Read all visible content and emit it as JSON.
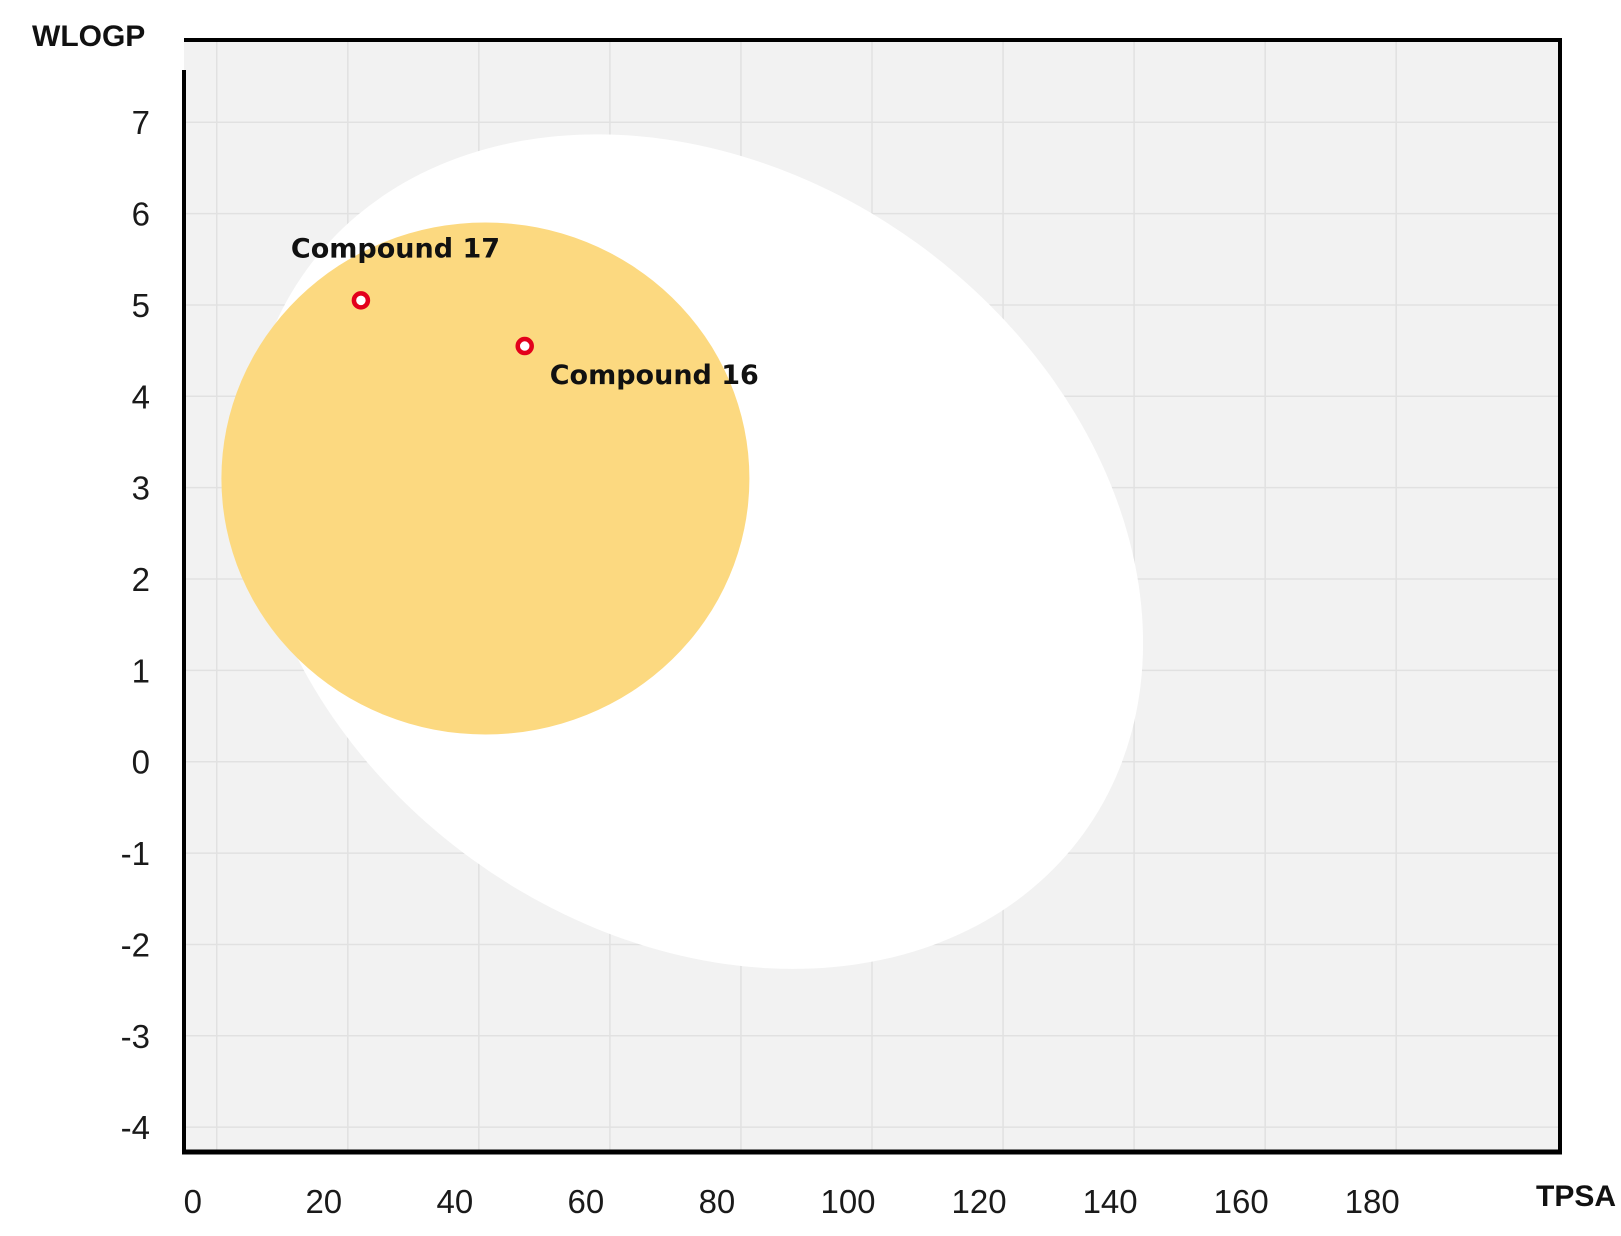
{
  "chart_data": {
    "type": "scatter",
    "title": "",
    "xlabel": "TPSA",
    "ylabel": "WLOGP",
    "xlim": [
      -5,
      205
    ],
    "ylim": [
      -4.25,
      7.9
    ],
    "x_ticks": [
      0,
      20,
      40,
      60,
      80,
      100,
      120,
      140,
      160,
      180
    ],
    "y_ticks": [
      7,
      6,
      5,
      4,
      3,
      2,
      1,
      0,
      -1,
      -2,
      -3,
      -4
    ],
    "grid": true,
    "regions": [
      {
        "name": "white",
        "shape": "ellipse",
        "color": "#ffffff"
      },
      {
        "name": "yolk",
        "shape": "ellipse",
        "color": "#fcd980"
      }
    ],
    "points": [
      {
        "label": "Compound 17",
        "x": 22,
        "y": 5.05
      },
      {
        "label": "Compound 16",
        "x": 47,
        "y": 4.55
      }
    ],
    "colors": {
      "background": "#f2f2f2",
      "frame": "#000000",
      "point_stroke": "#e3001b"
    }
  }
}
